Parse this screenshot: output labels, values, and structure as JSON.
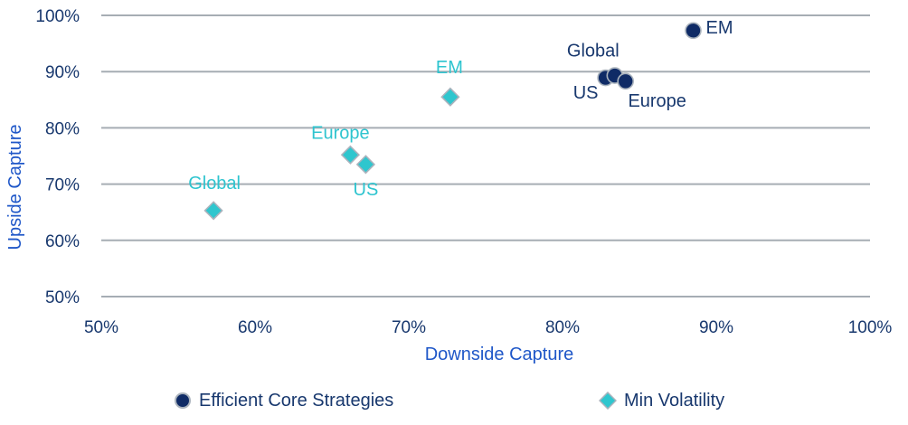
{
  "chart_data": {
    "type": "scatter",
    "title": "",
    "xlabel": "Downside Capture",
    "ylabel": "Upside Capture",
    "xlim": [
      50,
      100
    ],
    "ylim": [
      50,
      100
    ],
    "x_ticks": [
      "50%",
      "60%",
      "70%",
      "80%",
      "90%",
      "100%"
    ],
    "y_ticks": [
      "100%",
      "90%",
      "80%",
      "70%",
      "60%",
      "50%"
    ],
    "grid": "horizontal-only",
    "legend_position": "bottom",
    "colors": {
      "background": "#ffffff",
      "gridline": "#a6adb4",
      "marker_outline": "#aab3bd",
      "tick_text": "#18386e",
      "axis_title_text": "#1f57c8",
      "legend_text": "#18386e"
    },
    "series": [
      {
        "name": "Efficient Core Strategies",
        "marker": "circle",
        "color": "#0f2b66",
        "label_color": "#18386e",
        "points": [
          {
            "label": "US",
            "x": 82.8,
            "y": 88.9,
            "label_dx": -22,
            "label_dy": 16
          },
          {
            "label": "Global",
            "x": 83.4,
            "y": 89.3,
            "label_dx": -24,
            "label_dy": -28
          },
          {
            "label": "Europe",
            "x": 84.1,
            "y": 88.3,
            "label_dx": 35,
            "label_dy": 21
          },
          {
            "label": "EM",
            "x": 88.5,
            "y": 97.3,
            "label_dx": 29,
            "label_dy": -4
          }
        ]
      },
      {
        "name": "Min Volatility",
        "marker": "diamond",
        "color": "#2fc6ce",
        "label_color": "#2ec4cf",
        "points": [
          {
            "label": "Global",
            "x": 57.3,
            "y": 65.3,
            "label_dx": 1,
            "label_dy": -31
          },
          {
            "label": "Europe",
            "x": 66.2,
            "y": 75.2,
            "label_dx": -11,
            "label_dy": -25
          },
          {
            "label": "US",
            "x": 67.2,
            "y": 73.5,
            "label_dx": 0,
            "label_dy": 27
          },
          {
            "label": "EM",
            "x": 72.7,
            "y": 85.5,
            "label_dx": -1,
            "label_dy": -33
          }
        ]
      }
    ]
  }
}
